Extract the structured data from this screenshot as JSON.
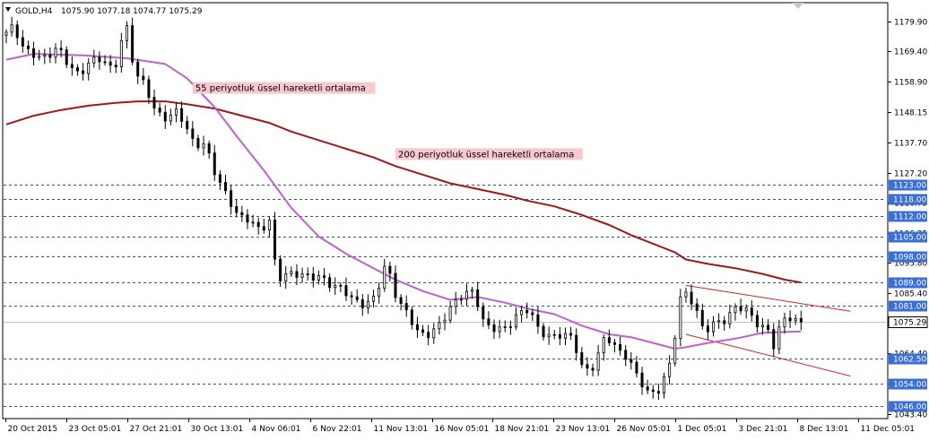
{
  "header": {
    "symbol": "GOLD,H4",
    "ohlc": "1075.90 1077.18 1074.77 1075.29"
  },
  "colors": {
    "background": "#ffffff",
    "candle": "#000000",
    "ema55": "#c060d0",
    "ema200": "#a01818",
    "level_line": "#3050a0",
    "price_tag_bg": "#3a6fd8",
    "current_tag_bg": "#ffffff",
    "annotation_bg": "#f7c8cf",
    "channel": "#e02020"
  },
  "annotations": [
    {
      "text": "55 periyotluk üssel hareketli ortalama",
      "anchor_x_index": 1.0,
      "anchor_y": 1156.2
    },
    {
      "text": "200 periyotluk üssel hareketli ortalama",
      "anchor_x_index": 1.0,
      "anchor_y": 1133.2
    }
  ],
  "chart_data": {
    "type": "candlestick",
    "title": "GOLD,H4",
    "x_ticks": [
      "20 Oct 2015",
      "23 Oct 05:01",
      "27 Oct 21:01",
      "30 Oct 13:01",
      "4 Nov 06:01",
      "6 Nov 22:01",
      "11 Nov 13:01",
      "16 Nov 05:01",
      "18 Nov 21:01",
      "23 Nov 13:01",
      "26 Nov 05:01",
      "1 Dec 05:01",
      "3 Dec 21:01",
      "8 Dec 13:01",
      "11 Dec 05:01"
    ],
    "y_ticks": [
      1179.9,
      1169.4,
      1158.9,
      1148.15,
      1137.7,
      1127.2,
      1116.75,
      1106.25,
      1095.8,
      1085.4,
      1074.85,
      1064.4,
      1053.95,
      1043.4
    ],
    "ylim": [
      1042.0,
      1186.0
    ],
    "horizontal_levels": [
      1123.0,
      1118.0,
      1112.0,
      1105.0,
      1098.0,
      1089.0,
      1081.0,
      1062.5,
      1054.0,
      1046.0
    ],
    "current_price": 1075.29,
    "series": [
      {
        "name": "55 periyotluk üssel hareketli ortalama",
        "type": "line",
        "points": [
          [
            0,
            1166.5
          ],
          [
            5,
            1168.5
          ],
          [
            14,
            1168.0
          ],
          [
            22,
            1167.0
          ],
          [
            29,
            1165.0
          ],
          [
            33,
            1160.0
          ],
          [
            38,
            1150.0
          ],
          [
            42,
            1140.0
          ],
          [
            47,
            1128.0
          ],
          [
            52,
            1115.0
          ],
          [
            57,
            1105.0
          ],
          [
            62,
            1099.0
          ],
          [
            67,
            1094.0
          ],
          [
            71,
            1090.0
          ],
          [
            76,
            1086.0
          ],
          [
            81,
            1083.0
          ],
          [
            86,
            1084.0
          ],
          [
            91,
            1082.0
          ],
          [
            95,
            1080.0
          ],
          [
            100,
            1078.0
          ],
          [
            105,
            1074.0
          ],
          [
            110,
            1071.0
          ],
          [
            114,
            1070.0
          ],
          [
            118,
            1068.0
          ],
          [
            122,
            1066.0
          ],
          [
            124,
            1066.5
          ],
          [
            128,
            1068.0
          ],
          [
            133,
            1069.5
          ],
          [
            138,
            1071.5
          ],
          [
            142,
            1071.8
          ],
          [
            145,
            1072.0
          ]
        ]
      },
      {
        "name": "200 periyotluk üssel hareketli ortalama",
        "type": "line",
        "points": [
          [
            0,
            1144.0
          ],
          [
            5,
            1147.0
          ],
          [
            10,
            1149.0
          ],
          [
            15,
            1150.5
          ],
          [
            20,
            1151.5
          ],
          [
            24,
            1152.0
          ],
          [
            29,
            1152.0
          ],
          [
            33,
            1151.0
          ],
          [
            38,
            1149.5
          ],
          [
            43,
            1147.0
          ],
          [
            48,
            1144.5
          ],
          [
            52,
            1141.5
          ],
          [
            57,
            1138.5
          ],
          [
            62,
            1135.5
          ],
          [
            67,
            1132.5
          ],
          [
            71,
            1129.5
          ],
          [
            76,
            1126.5
          ],
          [
            81,
            1123.5
          ],
          [
            86,
            1121.5
          ],
          [
            91,
            1119.5
          ],
          [
            95,
            1117.5
          ],
          [
            100,
            1115.5
          ],
          [
            105,
            1112.5
          ],
          [
            110,
            1109.0
          ],
          [
            114,
            1105.5
          ],
          [
            118,
            1102.5
          ],
          [
            122,
            1099.5
          ],
          [
            124,
            1097.0
          ],
          [
            128,
            1095.5
          ],
          [
            133,
            1094.0
          ],
          [
            138,
            1092.0
          ],
          [
            142,
            1090.0
          ],
          [
            145,
            1089.0
          ]
        ]
      },
      {
        "name": "channel-upper",
        "type": "line",
        "points": [
          [
            124,
            1088.0
          ],
          [
            154,
            1079.0
          ]
        ]
      },
      {
        "name": "channel-lower",
        "type": "line",
        "points": [
          [
            124,
            1071.0
          ],
          [
            154,
            1056.5
          ]
        ]
      }
    ],
    "candle_keypoints": [
      [
        0,
        1175
      ],
      [
        2,
        1178
      ],
      [
        4,
        1170
      ],
      [
        6,
        1168
      ],
      [
        8,
        1167
      ],
      [
        10,
        1171
      ],
      [
        12,
        1165
      ],
      [
        14,
        1161
      ],
      [
        16,
        1166
      ],
      [
        18,
        1167
      ],
      [
        20,
        1163
      ],
      [
        21,
        1166
      ],
      [
        22,
        1176
      ],
      [
        23,
        1178
      ],
      [
        24,
        1162
      ],
      [
        26,
        1158
      ],
      [
        28,
        1148
      ],
      [
        30,
        1146
      ],
      [
        32,
        1149
      ],
      [
        35,
        1137
      ],
      [
        37,
        1137
      ],
      [
        39,
        1126
      ],
      [
        41,
        1119
      ],
      [
        43,
        1112
      ],
      [
        45,
        1111
      ],
      [
        47,
        1107
      ],
      [
        49,
        1111
      ],
      [
        50,
        1090
      ],
      [
        52,
        1092
      ],
      [
        54,
        1092
      ],
      [
        56,
        1091
      ],
      [
        58,
        1091
      ],
      [
        60,
        1088
      ],
      [
        62,
        1087
      ],
      [
        64,
        1083
      ],
      [
        66,
        1081
      ],
      [
        68,
        1084
      ],
      [
        70,
        1096
      ],
      [
        72,
        1083
      ],
      [
        74,
        1078
      ],
      [
        76,
        1071
      ],
      [
        78,
        1071
      ],
      [
        80,
        1075
      ],
      [
        82,
        1081
      ],
      [
        84,
        1085
      ],
      [
        86,
        1086
      ],
      [
        88,
        1074
      ],
      [
        90,
        1073
      ],
      [
        92,
        1073
      ],
      [
        94,
        1078
      ],
      [
        96,
        1080
      ],
      [
        98,
        1072
      ],
      [
        100,
        1070
      ],
      [
        102,
        1071
      ],
      [
        104,
        1070
      ],
      [
        106,
        1058
      ],
      [
        108,
        1060
      ],
      [
        110,
        1071
      ],
      [
        112,
        1066
      ],
      [
        114,
        1063
      ],
      [
        116,
        1056
      ],
      [
        118,
        1050
      ],
      [
        120,
        1052
      ],
      [
        122,
        1062
      ],
      [
        124,
        1087
      ],
      [
        126,
        1082
      ],
      [
        128,
        1072
      ],
      [
        130,
        1075
      ],
      [
        132,
        1076
      ],
      [
        134,
        1081
      ],
      [
        136,
        1079
      ],
      [
        138,
        1074
      ],
      [
        140,
        1072
      ],
      [
        141,
        1065
      ],
      [
        142,
        1076
      ],
      [
        144,
        1077
      ],
      [
        145,
        1075
      ]
    ]
  }
}
